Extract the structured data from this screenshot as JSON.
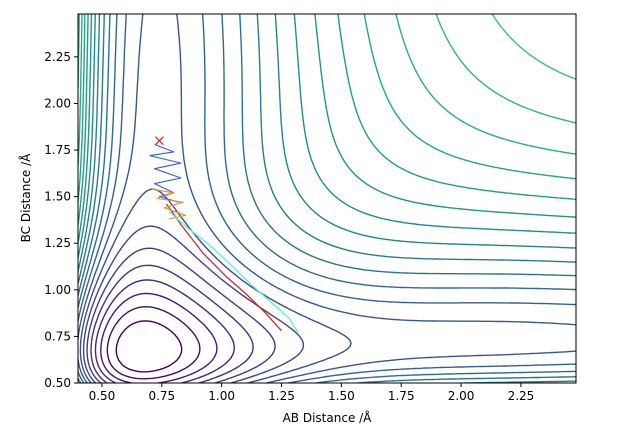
{
  "chart_data": {
    "type": "contour",
    "title": "",
    "xlabel": "AB Distance /Å",
    "ylabel": "BC Distance /Å",
    "xlim": [
      0.4,
      2.48
    ],
    "ylim": [
      0.5,
      2.48
    ],
    "grid": false,
    "legend": "none",
    "xticks": [
      {
        "value": 0.5,
        "label": "0.50"
      },
      {
        "value": 0.75,
        "label": "0.75"
      },
      {
        "value": 1.0,
        "label": "1.00"
      },
      {
        "value": 1.25,
        "label": "1.25"
      },
      {
        "value": 1.5,
        "label": "1.50"
      },
      {
        "value": 1.75,
        "label": "1.75"
      },
      {
        "value": 2.0,
        "label": "2.00"
      },
      {
        "value": 2.25,
        "label": "2.25"
      }
    ],
    "yticks": [
      {
        "value": 0.5,
        "label": "0.50"
      },
      {
        "value": 0.75,
        "label": "0.75"
      },
      {
        "value": 1.0,
        "label": "1.00"
      },
      {
        "value": 1.25,
        "label": "1.25"
      },
      {
        "value": 1.5,
        "label": "1.50"
      },
      {
        "value": 1.75,
        "label": "1.75"
      },
      {
        "value": 2.0,
        "label": "2.00"
      },
      {
        "value": 2.25,
        "label": "2.25"
      }
    ],
    "colormap": "viridis",
    "contour_levels": 30,
    "trajectories": [
      {
        "color": "#d62728",
        "style": "line",
        "points": [
          [
            0.77,
            1.46
          ],
          [
            0.83,
            1.35
          ],
          [
            0.92,
            1.2
          ],
          [
            1.02,
            1.07
          ],
          [
            1.1,
            0.98
          ],
          [
            1.18,
            0.88
          ],
          [
            1.25,
            0.78
          ]
        ]
      },
      {
        "color": "#5cf2cf",
        "style": "line",
        "points": [
          [
            0.78,
            1.42
          ],
          [
            0.86,
            1.33
          ],
          [
            0.95,
            1.24
          ],
          [
            1.05,
            1.12
          ],
          [
            1.13,
            1.02
          ],
          [
            1.21,
            0.93
          ],
          [
            1.28,
            0.85
          ],
          [
            1.32,
            0.77
          ]
        ]
      },
      {
        "color": "#3b5bdb",
        "style": "zigzag",
        "points": [
          [
            0.72,
            1.78
          ],
          [
            0.8,
            1.74
          ],
          [
            0.7,
            1.72
          ],
          [
            0.83,
            1.68
          ],
          [
            0.72,
            1.65
          ],
          [
            0.83,
            1.6
          ],
          [
            0.72,
            1.57
          ],
          [
            0.8,
            1.52
          ],
          [
            0.74,
            1.5
          ],
          [
            0.82,
            1.47
          ]
        ]
      },
      {
        "color": "#e39034",
        "style": "zigzag",
        "points": [
          [
            0.71,
            1.54
          ],
          [
            0.8,
            1.52
          ],
          [
            0.73,
            1.49
          ],
          [
            0.84,
            1.47
          ],
          [
            0.76,
            1.44
          ],
          [
            0.85,
            1.4
          ],
          [
            0.78,
            1.38
          ]
        ]
      }
    ],
    "markers": [
      {
        "x": 0.74,
        "y": 1.8,
        "symbol": "x",
        "color": "#d62728"
      }
    ]
  }
}
